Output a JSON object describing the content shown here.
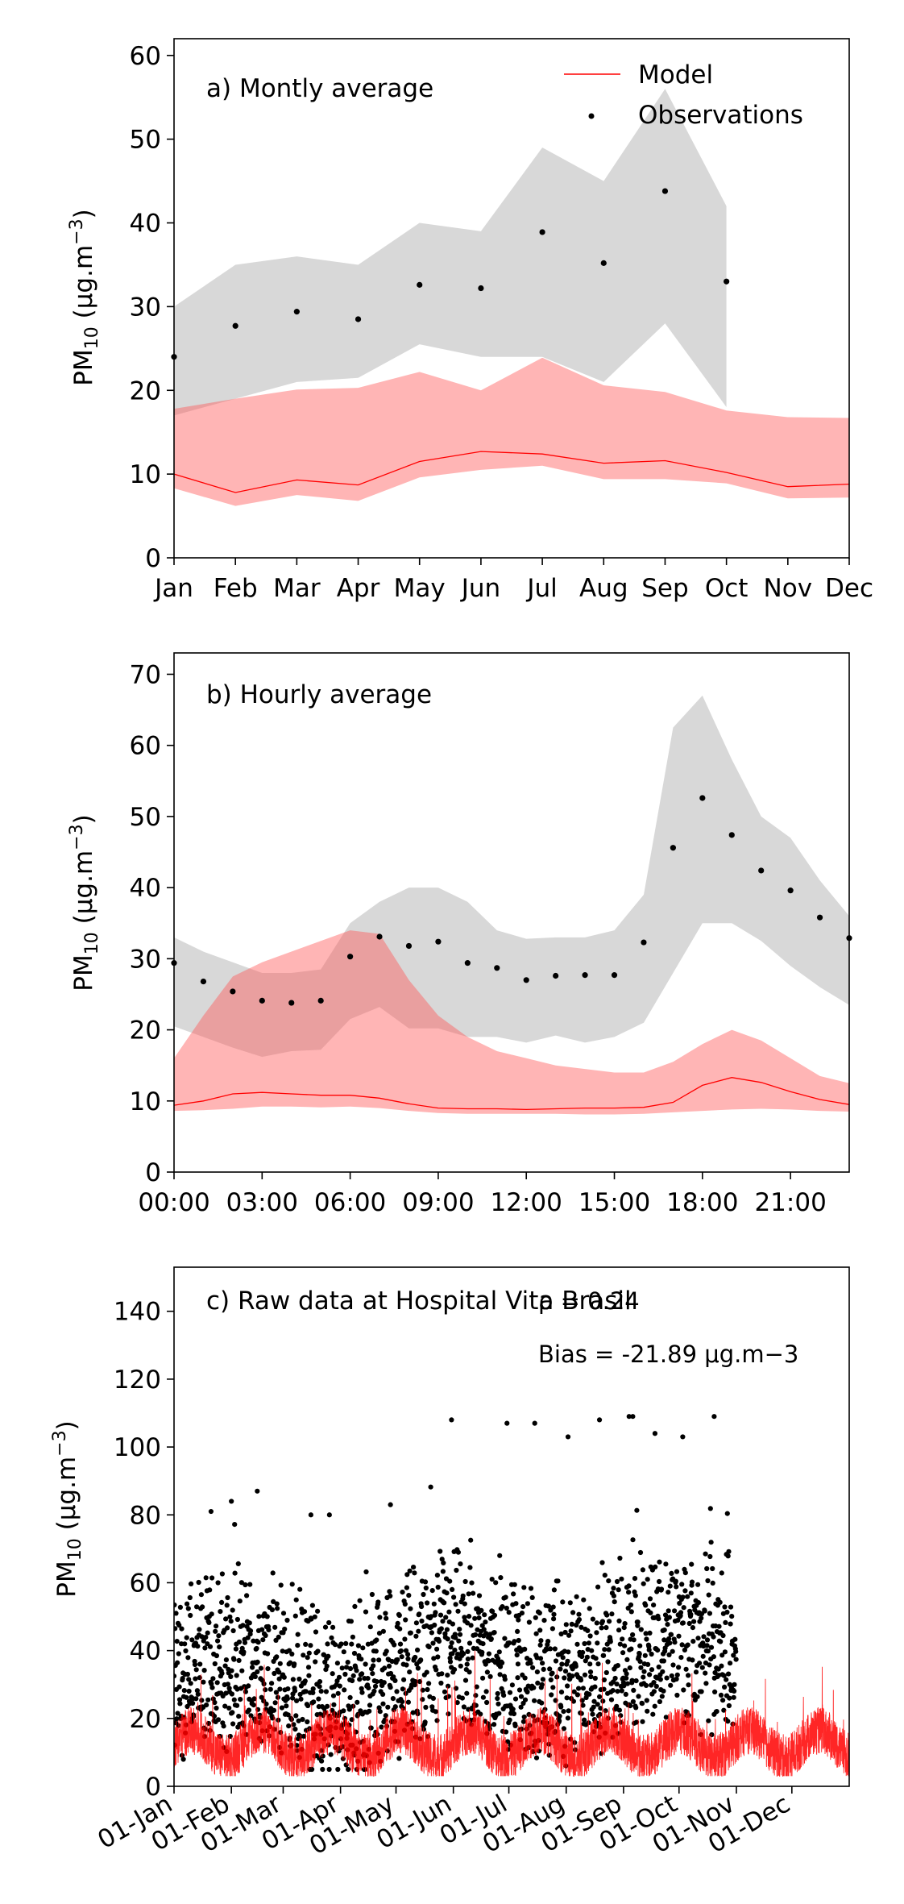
{
  "chart_data": [
    {
      "type": "line",
      "title": "a) Montly average",
      "xlabel": "",
      "ylabel": "PM10 (μg.m−3)",
      "ylim": [
        0,
        62
      ],
      "yticks": [
        0,
        10,
        20,
        30,
        40,
        50,
        60
      ],
      "categories": [
        "Jan",
        "Feb",
        "Mar",
        "Apr",
        "May",
        "Jun",
        "Jul",
        "Aug",
        "Sep",
        "Oct",
        "Nov",
        "Dec"
      ],
      "x_positions": [
        0,
        1,
        2,
        3,
        4,
        5,
        6,
        7,
        8,
        9,
        10,
        11
      ],
      "x_day_of_year": [
        0,
        31,
        59,
        90,
        120,
        151,
        181,
        212,
        243,
        273,
        304,
        334
      ],
      "legend": {
        "placement": "top-right",
        "entries": [
          "Model",
          "Observations"
        ]
      },
      "series": [
        {
          "name": "Model",
          "kind": "line",
          "color": "#ff0000",
          "values": [
            10.0,
            7.8,
            9.3,
            8.7,
            11.5,
            12.7,
            12.4,
            11.3,
            11.6,
            10.2,
            8.5,
            8.8
          ]
        },
        {
          "name": "Observations",
          "kind": "points",
          "color": "#000000",
          "values": [
            24.0,
            27.7,
            29.4,
            28.5,
            32.6,
            32.2,
            38.9,
            35.2,
            43.8,
            33.0,
            null,
            null
          ]
        }
      ],
      "bands": [
        {
          "color": "#bebebe",
          "opacity": 0.6,
          "lower": [
            17,
            19,
            21,
            21.5,
            25.5,
            24,
            24,
            21,
            28,
            18,
            null,
            null
          ],
          "upper": [
            30,
            35,
            36,
            35,
            40,
            39,
            49,
            45,
            56,
            42,
            null,
            null
          ]
        },
        {
          "color": "#ff5a5a",
          "opacity": 0.45,
          "lower": [
            8.3,
            6.2,
            7.5,
            6.8,
            9.6,
            10.5,
            11.0,
            9.4,
            9.4,
            8.9,
            7.1,
            7.2
          ],
          "upper": [
            17.8,
            19.0,
            20.1,
            20.3,
            22.2,
            20.0,
            23.9,
            20.6,
            19.8,
            17.6,
            16.8,
            16.7
          ]
        }
      ]
    },
    {
      "type": "line",
      "title": "b) Hourly average",
      "xlabel": "",
      "ylabel": "PM10 (μg.m−3)",
      "ylim": [
        0,
        73
      ],
      "yticks": [
        0,
        10,
        20,
        30,
        40,
        50,
        60,
        70
      ],
      "x": [
        0,
        1,
        2,
        3,
        4,
        5,
        6,
        7,
        8,
        9,
        10,
        11,
        12,
        13,
        14,
        15,
        16,
        17,
        18,
        19,
        20,
        21,
        22,
        23
      ],
      "xlim": [
        0,
        23
      ],
      "xticks": [
        0,
        3,
        6,
        9,
        12,
        15,
        18,
        21
      ],
      "xtick_labels": [
        "00:00",
        "03:00",
        "06:00",
        "09:00",
        "12:00",
        "15:00",
        "18:00",
        "21:00"
      ],
      "series": [
        {
          "name": "Model",
          "kind": "line",
          "color": "#ff0000",
          "values": [
            9.4,
            10.0,
            11.0,
            11.2,
            11.0,
            10.8,
            10.8,
            10.4,
            9.6,
            9.0,
            8.9,
            8.9,
            8.8,
            8.9,
            9.0,
            9.0,
            9.1,
            9.8,
            12.2,
            13.3,
            12.6,
            11.3,
            10.2,
            9.5
          ]
        },
        {
          "name": "Observations",
          "kind": "points",
          "color": "#000000",
          "values": [
            29.4,
            26.8,
            25.4,
            24.1,
            23.8,
            24.1,
            30.3,
            33.1,
            31.8,
            32.4,
            29.4,
            28.7,
            27.0,
            27.6,
            27.7,
            27.7,
            32.3,
            45.6,
            52.6,
            47.4,
            42.4,
            39.6,
            35.8,
            32.9
          ]
        }
      ],
      "bands": [
        {
          "color": "#bebebe",
          "opacity": 0.6,
          "lower": [
            20.5,
            19,
            17.5,
            16.2,
            17.0,
            17.2,
            21.5,
            23.2,
            20.2,
            20.2,
            19.0,
            19.0,
            18.2,
            19.2,
            18.2,
            19.0,
            21.0,
            28.0,
            35.0,
            35.0,
            32.5,
            29.0,
            26.0,
            23.5
          ],
          "upper": [
            33,
            31,
            29.5,
            28.0,
            28.0,
            28.5,
            35.0,
            38.0,
            40.0,
            40.0,
            38.0,
            34.0,
            32.8,
            33.0,
            33.0,
            34.0,
            39.0,
            62.5,
            67.0,
            58.0,
            50.0,
            47.0,
            41.0,
            36.0
          ]
        },
        {
          "color": "#ff5a5a",
          "opacity": 0.45,
          "lower": [
            8.6,
            8.7,
            8.9,
            9.2,
            9.2,
            9.1,
            9.2,
            9.0,
            8.6,
            8.3,
            8.2,
            8.2,
            8.2,
            8.2,
            8.1,
            8.1,
            8.2,
            8.4,
            8.6,
            8.8,
            8.9,
            8.8,
            8.6,
            8.5
          ],
          "upper": [
            16,
            22,
            27.5,
            29.5,
            31.0,
            32.5,
            34.0,
            33.5,
            27.0,
            22.0,
            19.0,
            17.0,
            16.0,
            15.0,
            14.5,
            14.0,
            14.0,
            15.5,
            18.0,
            20.0,
            18.5,
            16.0,
            13.5,
            12.5
          ]
        }
      ]
    },
    {
      "type": "scatter",
      "title": "c) Raw data at Hospital Vita Brasil",
      "xlabel": "",
      "ylabel": "PM10 (μg.m−3)",
      "ylim": [
        0,
        153
      ],
      "yticks": [
        0,
        20,
        40,
        60,
        80,
        100,
        120,
        140
      ],
      "xlim_day": [
        0,
        365
      ],
      "xticks_day": [
        0,
        31,
        59,
        90,
        120,
        151,
        181,
        212,
        243,
        273,
        304,
        334
      ],
      "xtick_labels": [
        "01-Jan",
        "01-Feb",
        "01-Mar",
        "01-Apr",
        "01-May",
        "01-Jun",
        "01-Jul",
        "01-Aug",
        "01-Sep",
        "01-Oct",
        "01-Nov",
        "01-Dec"
      ],
      "annotations": [
        "ρ = 0.24",
        "Bias = -21.89 μg.m−3"
      ],
      "observations_outliers": [
        {
          "day": 20,
          "value": 81
        },
        {
          "day": 31,
          "value": 84
        },
        {
          "day": 45,
          "value": 87
        },
        {
          "day": 74,
          "value": 80
        },
        {
          "day": 84,
          "value": 80
        },
        {
          "day": 117,
          "value": 83
        },
        {
          "day": 150,
          "value": 108
        },
        {
          "day": 180,
          "value": 107
        },
        {
          "day": 195,
          "value": 107
        },
        {
          "day": 213,
          "value": 103
        },
        {
          "day": 230,
          "value": 108
        },
        {
          "day": 246,
          "value": 109
        },
        {
          "day": 248,
          "value": 109
        },
        {
          "day": 260,
          "value": 104
        },
        {
          "day": 275,
          "value": 103
        },
        {
          "day": 292,
          "value": 109
        }
      ],
      "series": [
        {
          "name": "Model",
          "kind": "line",
          "color": "#ff0000",
          "typical_range": [
            3,
            45
          ],
          "peak": 53
        },
        {
          "name": "Observations",
          "kind": "points",
          "color": "#000000",
          "typical_range": [
            5,
            100
          ],
          "max": 109
        }
      ]
    }
  ]
}
